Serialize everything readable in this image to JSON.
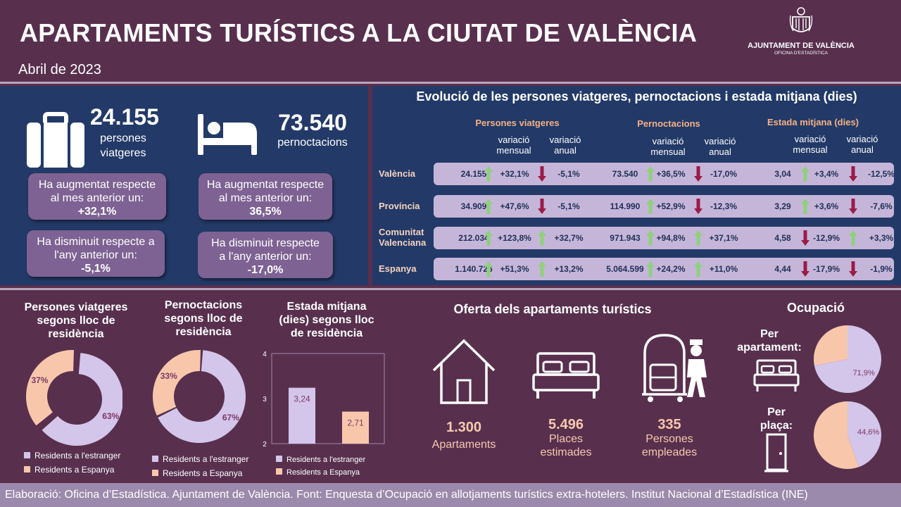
{
  "header": {
    "title": "APARTAMENTS TURÍSTICS A LA CIUTAT DE VALÈNCIA",
    "subtitle": "Abril de 2023",
    "logo_name": "AJUNTAMENT DE VALÈNCIA",
    "logo_sub": "OFICINA D'ESTADÍSTICA"
  },
  "summary": {
    "travellers": {
      "value": "24.155",
      "label1": "persones",
      "label2": "viatgeres",
      "up_line1": "Ha augmentat respecte",
      "up_line2": "al mes anterior un:",
      "up_value": "+32,1%",
      "down_line1": "Ha disminuit respecte a",
      "down_line2": "l'any anterior un:",
      "down_value": "-5,1%"
    },
    "nights": {
      "value": "73.540",
      "label1": "pernoctacions",
      "up_line1": "Ha augmentat respecte",
      "up_line2": "al mes anterior un:",
      "up_value": "36,5%",
      "down_line1": "Ha disminuit respecte",
      "down_line2": "a l'any anterior un:",
      "down_value": "-17,0%"
    }
  },
  "evolution": {
    "title": "Evolució de les persones viatgeres, pernoctacions i estada mitjana (dies)",
    "groups": [
      "Persones viatgeres",
      "Pernoctacions",
      "Estada mitjana (dies)"
    ],
    "sub_monthly": [
      "variació",
      "mensual"
    ],
    "sub_annual": [
      "variació",
      "anual"
    ],
    "rows": [
      {
        "label": [
          "València"
        ],
        "cells": [
          "24.155",
          "+32,1%",
          "-5,1%",
          "73.540",
          "+36,5%",
          "-17,0%",
          "3,04",
          "+3,4%",
          "-12,5%"
        ],
        "dirs": [
          "up",
          "down",
          "up",
          "down",
          "up",
          "down"
        ]
      },
      {
        "label": [
          "Província"
        ],
        "cells": [
          "34.909",
          "+47,6%",
          "-5,1%",
          "114.990",
          "+52,9%",
          "-12,3%",
          "3,29",
          "+3,6%",
          "-7,6%"
        ],
        "dirs": [
          "up",
          "down",
          "up",
          "down",
          "up",
          "down"
        ]
      },
      {
        "label": [
          "Comunitat",
          "Valenciana"
        ],
        "cells": [
          "212.034",
          "+123,8%",
          "+32,7%",
          "971.943",
          "+94,8%",
          "+37,1%",
          "4,58",
          "-12,9%",
          "+3,3%"
        ],
        "dirs": [
          "up",
          "up",
          "up",
          "up",
          "down",
          "up"
        ]
      },
      {
        "label": [
          "Espanya"
        ],
        "cells": [
          "1.140.726",
          "+51,3%",
          "+13,2%",
          "5.064.599",
          "+24,2%",
          "+11,0%",
          "4,44",
          "-17,9%",
          "-1,9%"
        ],
        "dirs": [
          "up",
          "up",
          "up",
          "up",
          "down",
          "down"
        ]
      }
    ]
  },
  "colors": {
    "foreign": "#d4c5ea",
    "spain": "#f8c7ab",
    "up_arrow": "#8fd07a",
    "down_arrow": "#9b1b47"
  },
  "chart_data": [
    {
      "type": "pie",
      "title": "Persones viatgeres segons lloc de residència",
      "series": [
        {
          "name": "Residents a l'estranger",
          "value": 63,
          "label": "63%"
        },
        {
          "name": "Residents a Espanya",
          "value": 37,
          "label": "37%"
        }
      ]
    },
    {
      "type": "pie",
      "title": "Pernoctacions segons lloc de residència",
      "series": [
        {
          "name": "Residents a l'estranger",
          "value": 67,
          "label": "67%"
        },
        {
          "name": "Residents a Espanya",
          "value": 33,
          "label": "33%"
        }
      ]
    },
    {
      "type": "bar",
      "title": "Estada mitjana (dies) segons lloc de residència",
      "categories": [
        "Residents a l'estranger",
        "Residents a Espanya"
      ],
      "values": [
        3.24,
        2.71
      ],
      "value_labels": [
        "3,24",
        "2,71"
      ],
      "ylim": [
        2,
        4
      ],
      "yticks": [
        "2",
        "3",
        "4"
      ]
    },
    {
      "type": "pie",
      "title": "Per apartament:",
      "series": [
        {
          "value": 71.9,
          "label": "71,9%"
        },
        {
          "value": 28.1,
          "label": ""
        }
      ]
    },
    {
      "type": "pie",
      "title": "Per plaça:",
      "series": [
        {
          "value": 44.6,
          "label": "44,6%"
        },
        {
          "value": 55.4,
          "label": ""
        }
      ]
    }
  ],
  "charts_text": {
    "travellers_title": [
      "Persones viatgeres",
      "segons lloc de",
      "residència"
    ],
    "nights_title": [
      "Pernoctacions",
      "segons lloc de",
      "residència"
    ],
    "stay_title": [
      "Estada mitjana",
      "(dies) segons lloc",
      "de residència"
    ],
    "legend_foreign": "Residents a l'estranger",
    "legend_spain": "Residents a Espanya"
  },
  "offer": {
    "title": "Oferta dels apartaments turístics",
    "items": [
      {
        "value": "1.300",
        "cap1": "Apartaments",
        "cap2": ""
      },
      {
        "value": "5.496",
        "cap1": "Places",
        "cap2": "estimades"
      },
      {
        "value": "335",
        "cap1": "Persones",
        "cap2": "empleades"
      }
    ]
  },
  "occupancy": {
    "title": "Ocupació",
    "per_apt": [
      "Per",
      "apartament:"
    ],
    "per_place": [
      "Per",
      "plaça:"
    ]
  },
  "footer": "Elaboració: Oficina d’Estadística. Ajuntament de València. Font: Enquesta d’Ocupació en allotjaments turístics extra-hotelers. Institut Nacional d’Estadística (INE)"
}
